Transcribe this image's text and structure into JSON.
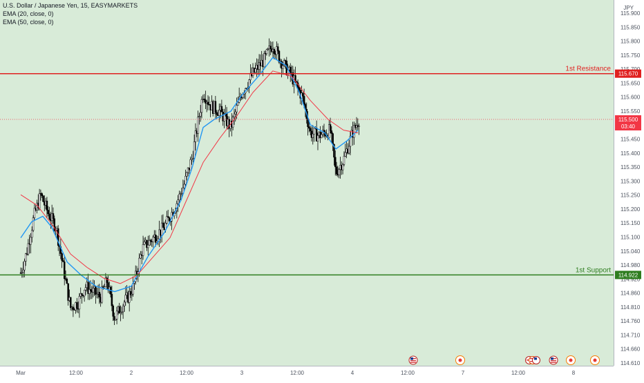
{
  "header": {
    "title": "U.S. Dollar / Japanese Yen, 15, EASYMARKETS",
    "indicators": [
      "EMA (20, close, 0)",
      "EMA (50, close, 0)"
    ],
    "currency": "JPY"
  },
  "colors": {
    "background": "#d8ebd8",
    "candle": "#000000",
    "ema20": "#2196f3",
    "ema50": "#f23645",
    "resistance": "#e0201f",
    "support": "#2e7d1f",
    "price_tag": "#f23645"
  },
  "events": [
    {
      "icon": "us-flag-icon"
    },
    {
      "icon": "event-circle-icon"
    },
    {
      "icon": "multi-flag-icon"
    },
    {
      "icon": "us-flag-icon"
    },
    {
      "icon": "event-circle-icon"
    },
    {
      "icon": "event-circle-icon"
    }
  ],
  "chart_data": {
    "type": "line",
    "series_style": "candlestick",
    "title": "U.S. Dollar / Japanese Yen, 15, EASYMARKETS",
    "y_unit": "JPY",
    "ylim": [
      114.63,
      115.91
    ],
    "x_ticks": [
      "Mar",
      "12:00",
      "2",
      "12:00",
      "3",
      "12:00",
      "4",
      "12:00",
      "7",
      "12:00",
      "8"
    ],
    "y_ticks": [
      "115.900",
      "115.850",
      "115.800",
      "115.750",
      "115.700",
      "115.650",
      "115.600",
      "115.550",
      "115.500",
      "115.450",
      "115.400",
      "115.350",
      "115.300",
      "115.250",
      "115.200",
      "115.150",
      "115.100",
      "115.040",
      "114.980",
      "114.920",
      "114.860",
      "114.810",
      "114.760",
      "114.710",
      "114.660",
      "114.610"
    ],
    "series": [
      {
        "name": "EMA (20, close, 0)",
        "values": [
          {
            "t": 0.0,
            "y": 115.06
          },
          {
            "t": 0.1,
            "y": 115.12
          },
          {
            "t": 0.2,
            "y": 115.14
          },
          {
            "t": 0.28,
            "y": 115.1
          },
          {
            "t": 0.42,
            "y": 114.97
          },
          {
            "t": 0.55,
            "y": 114.92
          },
          {
            "t": 0.68,
            "y": 114.88
          },
          {
            "t": 0.85,
            "y": 114.86
          },
          {
            "t": 1.0,
            "y": 114.88
          },
          {
            "t": 1.15,
            "y": 114.99
          },
          {
            "t": 1.3,
            "y": 115.08
          },
          {
            "t": 1.45,
            "y": 115.2
          },
          {
            "t": 1.55,
            "y": 115.32
          },
          {
            "t": 1.65,
            "y": 115.47
          },
          {
            "t": 1.75,
            "y": 115.5
          },
          {
            "t": 1.9,
            "y": 115.53
          },
          {
            "t": 2.0,
            "y": 115.59
          },
          {
            "t": 2.15,
            "y": 115.66
          },
          {
            "t": 2.28,
            "y": 115.73
          },
          {
            "t": 2.4,
            "y": 115.7
          },
          {
            "t": 2.52,
            "y": 115.6
          },
          {
            "t": 2.62,
            "y": 115.48
          },
          {
            "t": 2.75,
            "y": 115.45
          },
          {
            "t": 2.85,
            "y": 115.39
          },
          {
            "t": 2.95,
            "y": 115.42
          },
          {
            "t": 3.05,
            "y": 115.46
          }
        ]
      },
      {
        "name": "EMA (50, close, 0)",
        "values": [
          {
            "t": 0.0,
            "y": 115.22
          },
          {
            "t": 0.15,
            "y": 115.18
          },
          {
            "t": 0.3,
            "y": 115.1
          },
          {
            "t": 0.45,
            "y": 115.0
          },
          {
            "t": 0.6,
            "y": 114.95
          },
          {
            "t": 0.75,
            "y": 114.91
          },
          {
            "t": 0.9,
            "y": 114.89
          },
          {
            "t": 1.05,
            "y": 114.92
          },
          {
            "t": 1.2,
            "y": 114.99
          },
          {
            "t": 1.35,
            "y": 115.06
          },
          {
            "t": 1.5,
            "y": 115.2
          },
          {
            "t": 1.65,
            "y": 115.34
          },
          {
            "t": 1.8,
            "y": 115.43
          },
          {
            "t": 1.95,
            "y": 115.51
          },
          {
            "t": 2.1,
            "y": 115.6
          },
          {
            "t": 2.28,
            "y": 115.68
          },
          {
            "t": 2.45,
            "y": 115.66
          },
          {
            "t": 2.62,
            "y": 115.57
          },
          {
            "t": 2.78,
            "y": 115.5
          },
          {
            "t": 2.92,
            "y": 115.46
          },
          {
            "t": 3.05,
            "y": 115.45
          }
        ]
      }
    ],
    "price_path": [
      {
        "t": 0.0,
        "y": 114.93
      },
      {
        "t": 0.05,
        "y": 115.0
      },
      {
        "t": 0.12,
        "y": 115.14
      },
      {
        "t": 0.18,
        "y": 115.22
      },
      {
        "t": 0.25,
        "y": 115.15
      },
      {
        "t": 0.32,
        "y": 115.1
      },
      {
        "t": 0.38,
        "y": 114.96
      },
      {
        "t": 0.45,
        "y": 114.8
      },
      {
        "t": 0.52,
        "y": 114.82
      },
      {
        "t": 0.58,
        "y": 114.88
      },
      {
        "t": 0.65,
        "y": 114.86
      },
      {
        "t": 0.72,
        "y": 114.84
      },
      {
        "t": 0.78,
        "y": 114.9
      },
      {
        "t": 0.85,
        "y": 114.76
      },
      {
        "t": 0.9,
        "y": 114.8
      },
      {
        "t": 0.97,
        "y": 114.84
      },
      {
        "t": 1.02,
        "y": 114.88
      },
      {
        "t": 1.1,
        "y": 115.02
      },
      {
        "t": 1.2,
        "y": 115.06
      },
      {
        "t": 1.3,
        "y": 115.1
      },
      {
        "t": 1.4,
        "y": 115.18
      },
      {
        "t": 1.48,
        "y": 115.26
      },
      {
        "t": 1.55,
        "y": 115.36
      },
      {
        "t": 1.6,
        "y": 115.48
      },
      {
        "t": 1.65,
        "y": 115.6
      },
      {
        "t": 1.72,
        "y": 115.55
      },
      {
        "t": 1.8,
        "y": 115.53
      },
      {
        "t": 1.9,
        "y": 115.47
      },
      {
        "t": 2.0,
        "y": 115.6
      },
      {
        "t": 2.1,
        "y": 115.67
      },
      {
        "t": 2.2,
        "y": 115.72
      },
      {
        "t": 2.28,
        "y": 115.78
      },
      {
        "t": 2.35,
        "y": 115.72
      },
      {
        "t": 2.45,
        "y": 115.66
      },
      {
        "t": 2.55,
        "y": 115.58
      },
      {
        "t": 2.62,
        "y": 115.45
      },
      {
        "t": 2.7,
        "y": 115.44
      },
      {
        "t": 2.8,
        "y": 115.46
      },
      {
        "t": 2.85,
        "y": 115.3
      },
      {
        "t": 2.92,
        "y": 115.35
      },
      {
        "t": 3.0,
        "y": 115.45
      },
      {
        "t": 3.06,
        "y": 115.5
      }
    ],
    "levels": [
      {
        "label": "1st Resistance",
        "value": 115.67
      },
      {
        "label": "1st Support",
        "value": 114.922
      }
    ],
    "last_price": {
      "value": "115.500",
      "countdown": "03:40"
    },
    "grid": false,
    "legend": "top-left"
  }
}
